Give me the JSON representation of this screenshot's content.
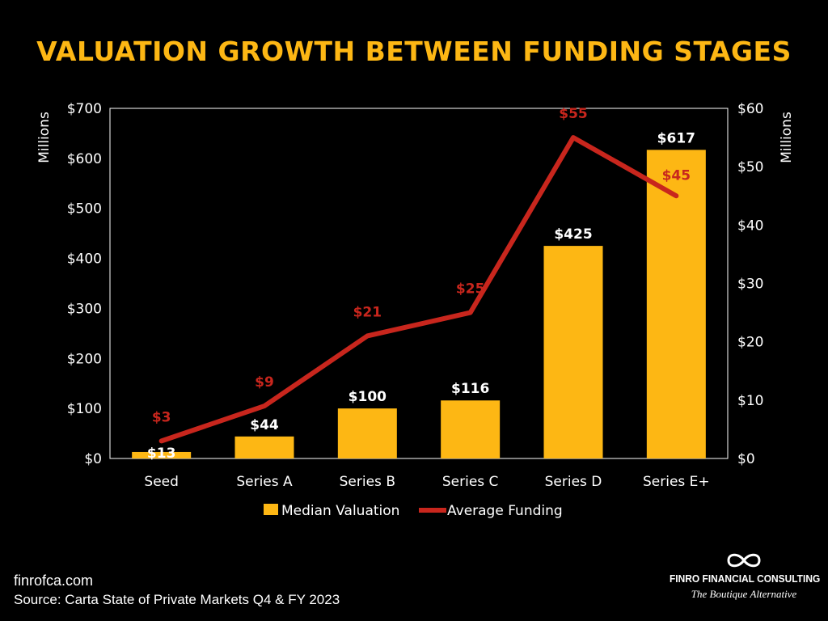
{
  "chart_data": {
    "type": "bar",
    "title": "VALUATION GROWTH BETWEEN FUNDING STAGES",
    "categories": [
      "Seed",
      "Series A",
      "Series B",
      "Series C",
      "Series D",
      "Series E+"
    ],
    "series": [
      {
        "name": "Median Valuation",
        "type": "bar",
        "axis": "left",
        "values": [
          13,
          44,
          100,
          116,
          425,
          617
        ],
        "labels": [
          "$13",
          "$44",
          "$100",
          "$116",
          "$425",
          "$617"
        ],
        "color": "#FDB714"
      },
      {
        "name": "Average Funding",
        "type": "line",
        "axis": "right",
        "values": [
          3,
          9,
          21,
          25,
          55,
          45
        ],
        "labels": [
          "$3",
          "$9",
          "$21",
          "$25",
          "$55",
          "$45"
        ],
        "color": "#C8261D"
      }
    ],
    "y_left": {
      "label": "Millions",
      "ylim": [
        0,
        700
      ],
      "ticks": [
        "$0",
        "$100",
        "$200",
        "$300",
        "$400",
        "$500",
        "$600",
        "$700"
      ]
    },
    "y_right": {
      "label": "Millions",
      "ylim": [
        0,
        60
      ],
      "ticks": [
        "$0",
        "$10",
        "$20",
        "$30",
        "$40",
        "$50",
        "$60"
      ]
    },
    "grid": false,
    "legend_position": "bottom"
  },
  "footer": {
    "website": "finrofca.com",
    "source": "Source: Carta State of Private Markets Q4 & FY 2023"
  },
  "brand": {
    "name": "FINRO FINANCIAL CONSULTING",
    "tagline": "The Boutique Alternative",
    "logo_icon": "infinity-icon"
  }
}
